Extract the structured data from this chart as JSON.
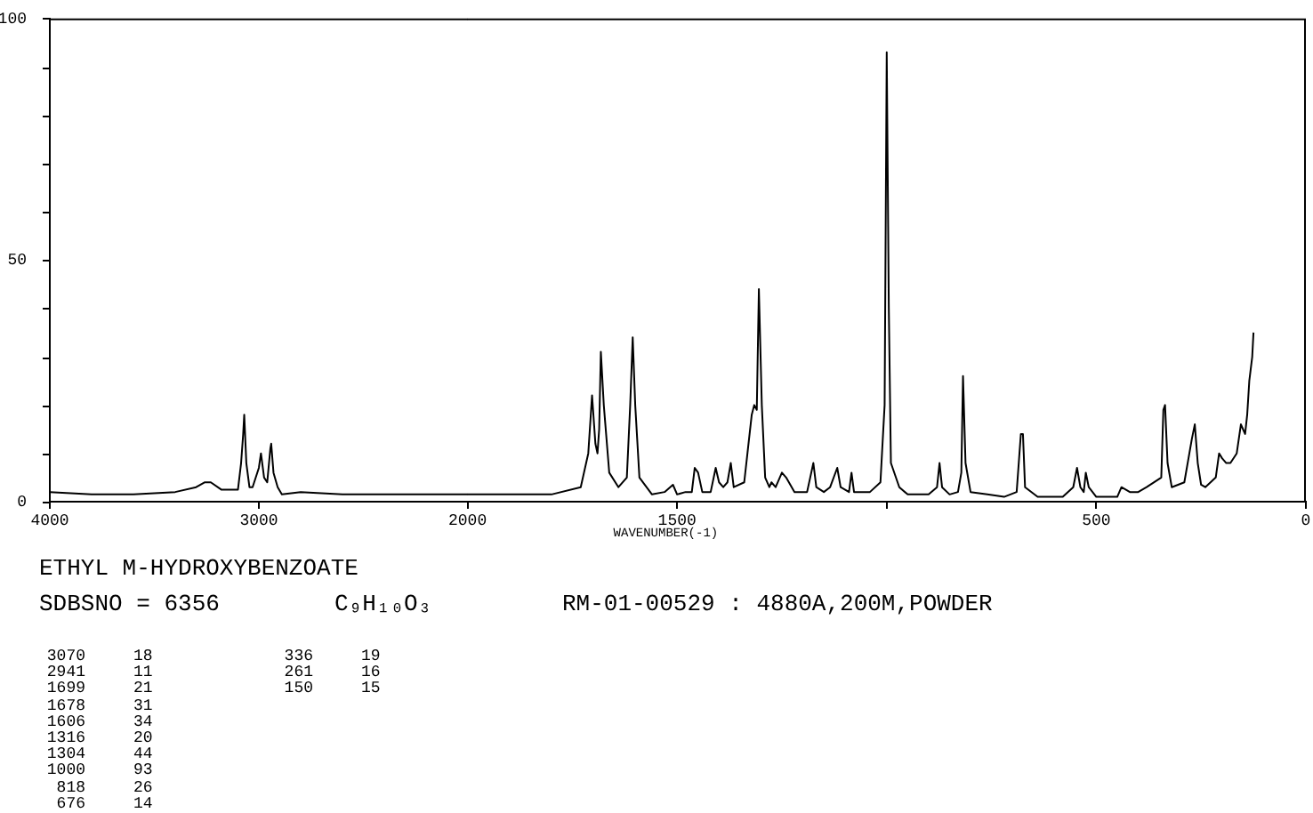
{
  "chart_data": [
    {
      "type": "line",
      "title": "ETHYL M-HYDROXYBENZOATE",
      "annotations": [
        "SDBSNO = 6356",
        "C₉H₁₀O₃",
        "RM-01-00529 : 4880A,200M,POWDER",
        "3070 18",
        "2941 11",
        "1699 21",
        "1678 31",
        "1606 34",
        "1316 20",
        "1304 44",
        "1000 93",
        "818 26",
        "676 14",
        "336 19",
        "261 16",
        "150 15"
      ],
      "xlim": [
        4000,
        2000
      ],
      "xticks": [
        4000,
        3000
      ],
      "ylim": [
        0,
        100
      ],
      "yticks": [
        0,
        {
          "value": 10,
          "label": null
        },
        {
          "value": 20,
          "label": null
        },
        {
          "value": 30,
          "label": null
        },
        {
          "value": 40,
          "label": null
        },
        50,
        {
          "value": 60,
          "label": null
        },
        {
          "value": 70,
          "label": null
        },
        {
          "value": 80,
          "label": null
        },
        {
          "value": 90,
          "label": null
        },
        100
      ],
      "series": [
        {
          "color": "#000000",
          "x": [
            4000,
            3800,
            3600,
            3400,
            3300,
            3260,
            3230,
            3180,
            3100,
            3085,
            3075,
            3070,
            3060,
            3045,
            3030,
            3000,
            2990,
            2975,
            2960,
            2945,
            2941,
            2930,
            2910,
            2890,
            2800,
            2600,
            2400,
            2200,
            2000
          ],
          "values": [
            2,
            1.5,
            1.5,
            2,
            3,
            4,
            4,
            2.5,
            2.5,
            8,
            14,
            18,
            8,
            3,
            3,
            7,
            10,
            5,
            4,
            11,
            12,
            6,
            3,
            1.5,
            2,
            1.5,
            1.5,
            1.5,
            1.5
          ]
        }
      ]
    },
    {
      "type": "line",
      "xlabel": "WAVENUMBER(-1)",
      "xlim": [
        2000,
        0
      ],
      "xticks": [
        2000,
        1500,
        {
          "value": 1000,
          "label": null
        },
        500,
        0
      ],
      "ylim": [
        0,
        100
      ],
      "tick_labels": "x",
      "series": [
        {
          "color": "#000000",
          "x": [
            2000,
            1900,
            1800,
            1730,
            1712,
            1703,
            1695,
            1690,
            1686,
            1682,
            1675,
            1662,
            1640,
            1620,
            1612,
            1606,
            1600,
            1590,
            1560,
            1530,
            1510,
            1500,
            1480,
            1465,
            1458,
            1450,
            1440,
            1420,
            1408,
            1400,
            1390,
            1380,
            1372,
            1365,
            1340,
            1322,
            1316,
            1310,
            1305,
            1298,
            1290,
            1280,
            1275,
            1265,
            1250,
            1240,
            1220,
            1190,
            1175,
            1168,
            1150,
            1135,
            1118,
            1110,
            1090,
            1084,
            1078,
            1040,
            1015,
            1005,
            1000,
            995,
            990,
            970,
            950,
            900,
            880,
            874,
            868,
            850,
            830,
            822,
            818,
            812,
            800,
            760,
            720,
            690,
            680,
            675,
            670,
            640,
            580,
            555,
            546,
            538,
            530,
            525,
            518,
            500,
            470,
            450,
            440,
            420,
            400,
            380,
            345,
            340,
            336,
            330,
            320,
            290,
            272,
            265,
            258,
            250,
            240,
            215,
            207,
            200,
            190,
            180,
            165,
            155,
            150,
            145,
            140,
            135,
            128,
            125
          ],
          "values": [
            1.5,
            1.5,
            1.5,
            3,
            10,
            22,
            12,
            10,
            15,
            31,
            20,
            6,
            3,
            5,
            20,
            34,
            20,
            5,
            1.5,
            2,
            3.5,
            1.5,
            2,
            2,
            7,
            6,
            2,
            2,
            7,
            4,
            3,
            4,
            8,
            3,
            4,
            18,
            20,
            19,
            44,
            20,
            5,
            3,
            4,
            3,
            6,
            5,
            2,
            2,
            8,
            3,
            2,
            3,
            7,
            3,
            2,
            6,
            2,
            2,
            4,
            20,
            93,
            40,
            8,
            3,
            1.5,
            1.5,
            3,
            8,
            3,
            1.5,
            2,
            6,
            26,
            8,
            2,
            1.5,
            1,
            2,
            14,
            14,
            3,
            1,
            1,
            3,
            7,
            3,
            2,
            6,
            3,
            1,
            1,
            1,
            3,
            2,
            2,
            3,
            5,
            19,
            20,
            8,
            3,
            4,
            13,
            16,
            8,
            3.5,
            3,
            5,
            10,
            9,
            8,
            8,
            10,
            16,
            15,
            14,
            18,
            25,
            30,
            35
          ]
        }
      ]
    }
  ]
}
